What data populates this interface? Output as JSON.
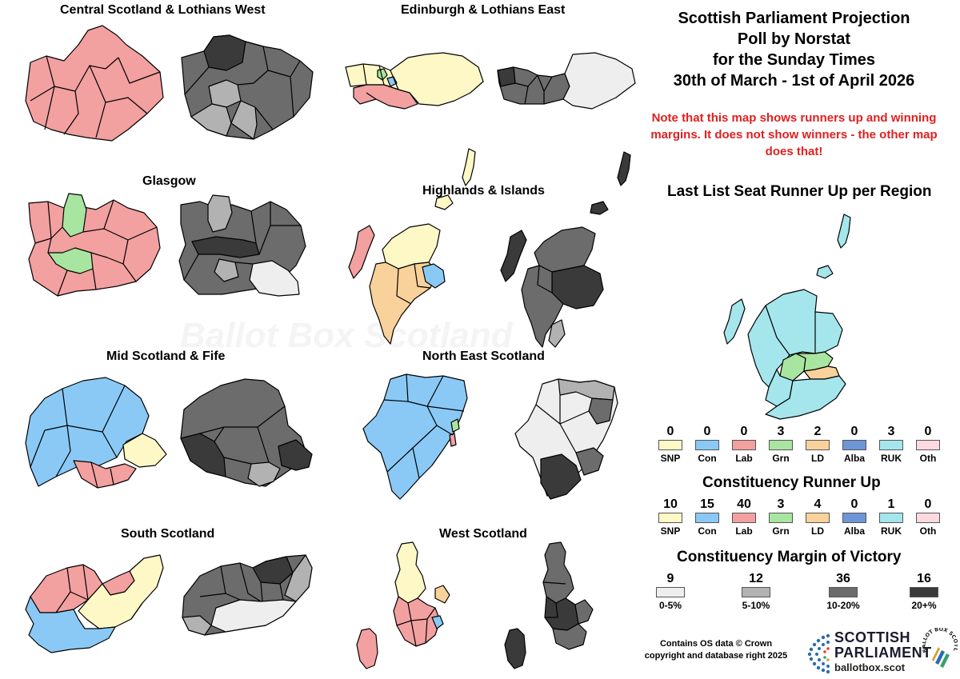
{
  "colors": {
    "SNP": "#fdf8c6",
    "Con": "#8ac9f5",
    "Lab": "#f2a0a0",
    "Grn": "#a8e5a0",
    "LD": "#f8d29a",
    "Alba": "#6e95d8",
    "RUK": "#a4e6ec",
    "Oth": "#fcd9df",
    "m0_5": "#eeeeee",
    "m5_10": "#b2b2b2",
    "m10_20": "#6c6c6c",
    "m20": "#3a3a3a"
  },
  "regions": {
    "central": "Central Scotland & Lothians West",
    "edinburgh": "Edinburgh & Lothians East",
    "glasgow": "Glasgow",
    "highlands": "Highlands & Islands",
    "mid": "Mid Scotland & Fife",
    "northeast": "North East Scotland",
    "south": "South Scotland",
    "west": "West Scotland"
  },
  "watermark": "Ballot Box Scotland",
  "title": {
    "line1": "Scottish Parliament Projection",
    "line2": "Poll by Norstat",
    "line3": "for the Sunday Times",
    "line4": "30th of March - 1st of April 2026"
  },
  "note": "Note that this map shows runners up and winning margins. It does not show winners - the other map does that!",
  "list_runner_up": {
    "heading": "Last List Seat Runner Up per Region",
    "parties": [
      {
        "label": "SNP",
        "count": "0",
        "color": "#fdf8c6"
      },
      {
        "label": "Con",
        "count": "0",
        "color": "#8ac9f5"
      },
      {
        "label": "Lab",
        "count": "0",
        "color": "#f2a0a0"
      },
      {
        "label": "Grn",
        "count": "3",
        "color": "#a8e5a0"
      },
      {
        "label": "LD",
        "count": "2",
        "color": "#f8d29a"
      },
      {
        "label": "Alba",
        "count": "0",
        "color": "#6e95d8"
      },
      {
        "label": "RUK",
        "count": "3",
        "color": "#a4e6ec"
      },
      {
        "label": "Oth",
        "count": "0",
        "color": "#fcd9df"
      }
    ]
  },
  "constituency_runner_up": {
    "heading": "Constituency Runner Up",
    "parties": [
      {
        "label": "SNP",
        "count": "10",
        "color": "#fdf8c6"
      },
      {
        "label": "Con",
        "count": "15",
        "color": "#8ac9f5"
      },
      {
        "label": "Lab",
        "count": "40",
        "color": "#f2a0a0"
      },
      {
        "label": "Grn",
        "count": "3",
        "color": "#a8e5a0"
      },
      {
        "label": "LD",
        "count": "4",
        "color": "#f8d29a"
      },
      {
        "label": "Alba",
        "count": "0",
        "color": "#6e95d8"
      },
      {
        "label": "RUK",
        "count": "1",
        "color": "#a4e6ec"
      },
      {
        "label": "Oth",
        "count": "0",
        "color": "#fcd9df"
      }
    ]
  },
  "margin": {
    "heading": "Constituency Margin of Victory",
    "bands": [
      {
        "label": "0-5%",
        "count": "9",
        "color": "#eeeeee"
      },
      {
        "label": "5-10%",
        "count": "12",
        "color": "#b2b2b2"
      },
      {
        "label": "10-20%",
        "count": "36",
        "color": "#6c6c6c"
      },
      {
        "label": "20+%",
        "count": "16",
        "color": "#3a3a3a"
      }
    ]
  },
  "credits": {
    "line1": "Contains OS data © Crown",
    "line2": "copyright and database right 2025"
  },
  "logo": {
    "line1": "SCOTTISH",
    "line2": "PARLIAMENT",
    "site": "ballotbox.scot",
    "ring_text": "BALLOT BOX SCOTLAND"
  }
}
